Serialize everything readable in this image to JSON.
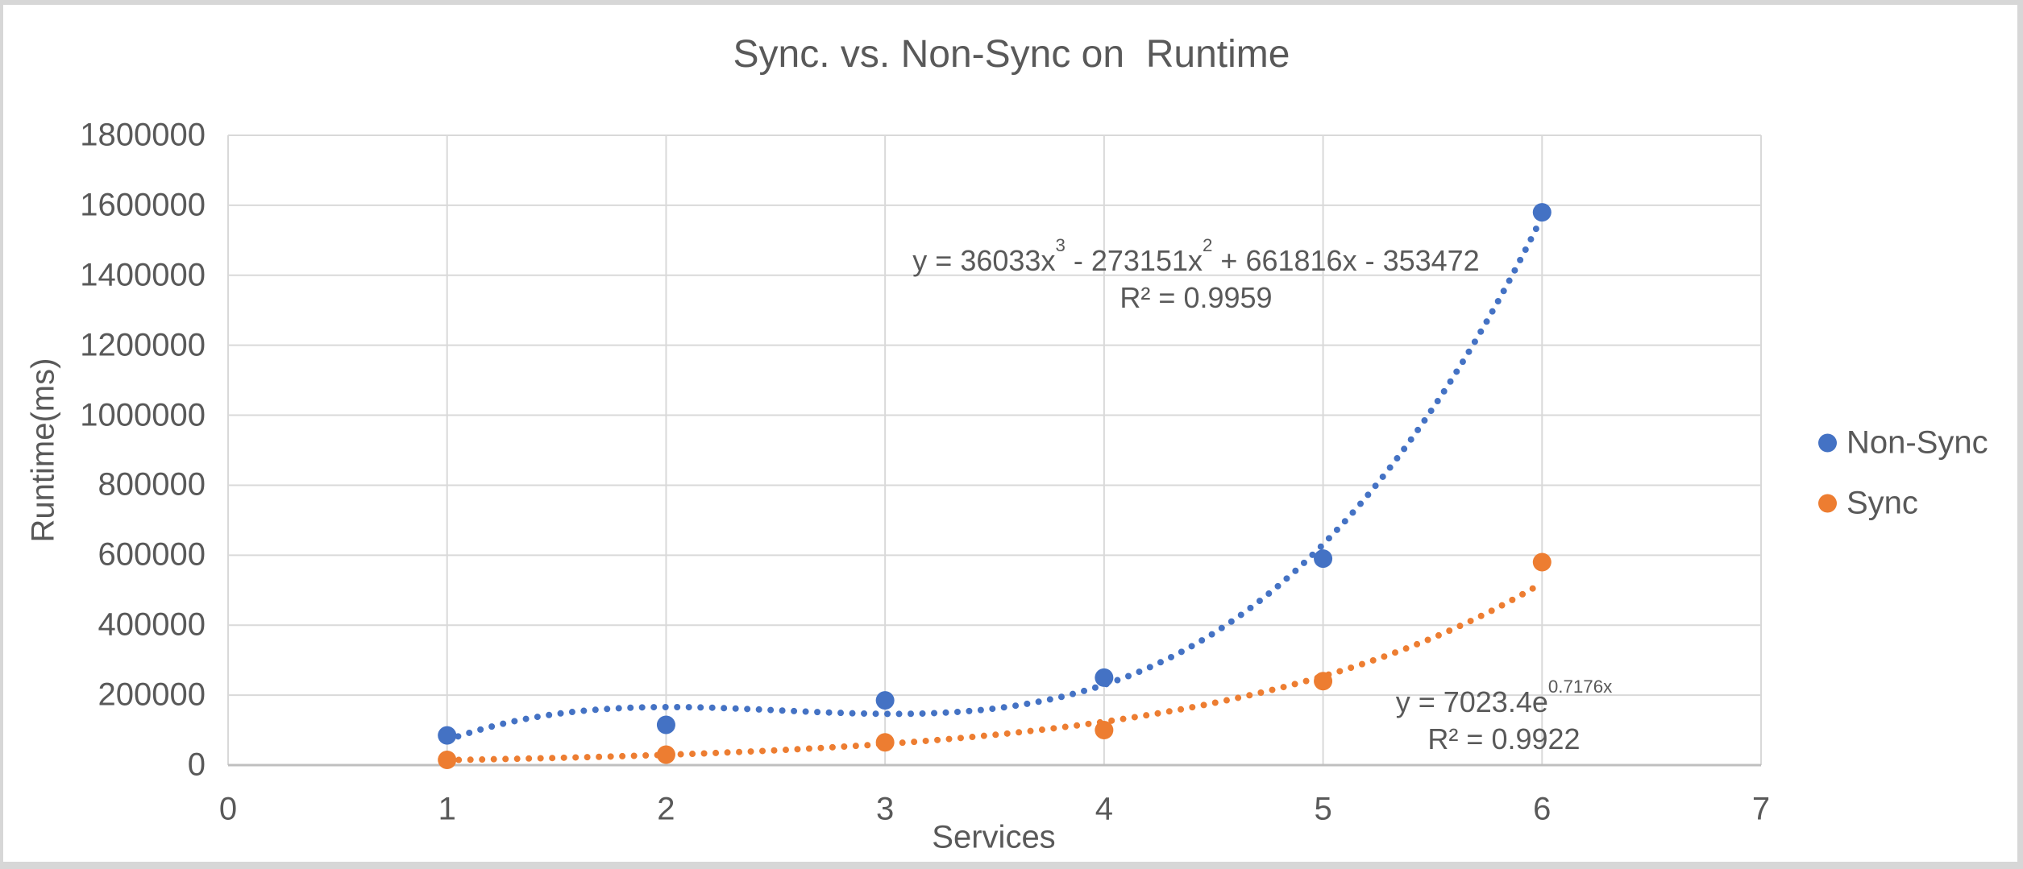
{
  "frame": {
    "border_color": "#d7d7d7",
    "canvas_color": "#ffffff"
  },
  "chart_data": {
    "type": "scatter",
    "title": "Sync. vs. Non-Sync on  Runtime",
    "xlabel": "Services",
    "ylabel": "Runtime(ms)",
    "xlim": [
      0,
      7
    ],
    "ylim": [
      0,
      1800000
    ],
    "grid": true,
    "legend_position": "right",
    "xticks": [
      "0",
      "1",
      "2",
      "3",
      "4",
      "5",
      "6",
      "7"
    ],
    "yticks": [
      "0",
      "200000",
      "400000",
      "600000",
      "800000",
      "1000000",
      "1200000",
      "1400000",
      "1600000",
      "1800000"
    ],
    "x": [
      1,
      2,
      3,
      4,
      5,
      6
    ],
    "series": [
      {
        "name": "Non-Sync",
        "color": "#4472C4",
        "values": [
          85000,
          115000,
          185000,
          250000,
          590000,
          1580000
        ],
        "trend": {
          "kind": "poly3",
          "coeffs": [
            36033,
            -273151,
            661816,
            -353472
          ],
          "x_start": 1,
          "x_end": 6
        }
      },
      {
        "name": "Sync",
        "color": "#ED7D31",
        "values": [
          15000,
          30000,
          65000,
          100000,
          240000,
          580000
        ],
        "trend": {
          "kind": "exp",
          "a": 7023.4,
          "b": 0.7176,
          "x_start": 1,
          "x_end": 6
        }
      }
    ],
    "colors": {
      "gridline": "#D9D9D9",
      "axis_line": "#BFBFBF",
      "text": "#595959"
    }
  },
  "annotations": {
    "nonsync_equation": {
      "p1": "y = 36033x",
      "s1": "3",
      "p2": " - 273151x",
      "s2": "2",
      "p3": " + 661816x - 353472",
      "r2": "R² = 0.9959"
    },
    "sync_equation": {
      "p1": "y = 7023.4e",
      "s1": "0.7176x",
      "r2": "R² = 0.9922"
    }
  }
}
